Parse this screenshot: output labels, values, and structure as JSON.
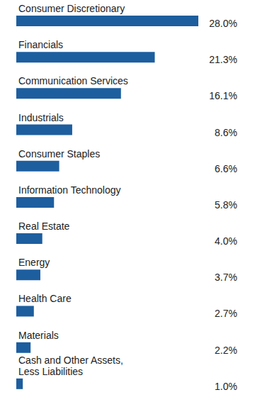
{
  "chart_data": {
    "type": "bar",
    "orientation": "horizontal",
    "categories": [
      "Consumer Discretionary",
      "Financials",
      "Communication Services",
      "Industrials",
      "Consumer Staples",
      "Information Technology",
      "Real Estate",
      "Energy",
      "Health Care",
      "Materials",
      "Cash and Other Assets, Less Liabilities"
    ],
    "values": [
      28.0,
      21.3,
      16.1,
      8.6,
      6.6,
      5.8,
      4.0,
      3.7,
      2.7,
      2.2,
      1.0
    ],
    "value_labels": [
      "28.0%",
      "21.3%",
      "16.1%",
      "8.6%",
      "6.6%",
      "5.8%",
      "4.0%",
      "3.7%",
      "2.7%",
      "2.2%",
      "1.0%"
    ],
    "data_labels": true,
    "color": "#1d5e9f",
    "xlim": [
      0,
      28
    ],
    "xticks": [
      0,
      28
    ],
    "tick_labels": false,
    "grid": false
  }
}
